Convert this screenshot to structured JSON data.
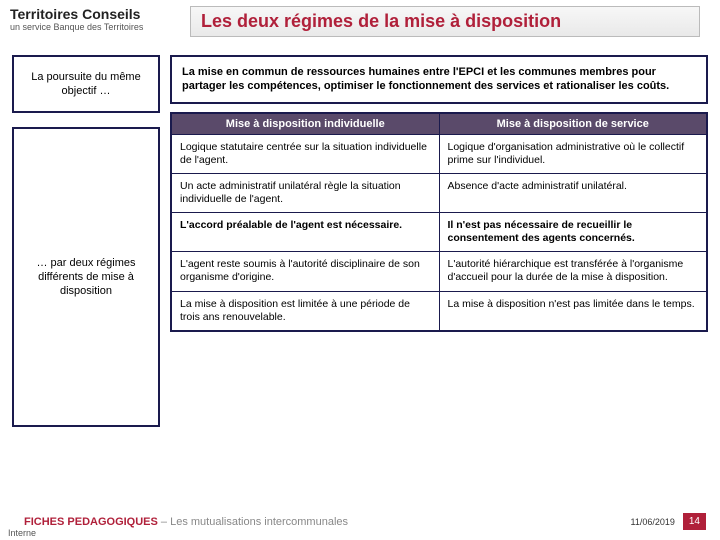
{
  "logo": {
    "title": "Territoires Conseils",
    "subtitle": "un service Banque des Territoires"
  },
  "title": "Les deux régimes de la mise à disposition",
  "left": {
    "box1": "La poursuite du même objectif …",
    "box2": "… par deux régimes différents de mise à disposition"
  },
  "intro": "La mise en commun de ressources humaines entre l'EPCI et les communes membres pour partager les compétences, optimiser le fonctionnement des services et rationaliser les coûts.",
  "table": {
    "head_left": "Mise à disposition individuelle",
    "head_right": "Mise à disposition de service",
    "rows": [
      {
        "l": "Logique statutaire centrée sur la situation individuelle de l'agent.",
        "r": "Logique d'organisation administrative où le collectif prime sur l'individuel."
      },
      {
        "l": "Un acte administratif unilatéral règle la situation individuelle de l'agent.",
        "r": "Absence d'acte administratif unilatéral."
      },
      {
        "l": "L'accord préalable de l'agent est nécessaire.",
        "r": "Il n'est pas nécessaire de recueillir le consentement des agents concernés."
      },
      {
        "l": "L'agent reste soumis à l'autorité disciplinaire de son organisme d'origine.",
        "r": "L'autorité hiérarchique est transférée à l'organisme d'accueil pour la durée de la mise à disposition."
      },
      {
        "l": "La mise à disposition est limitée à une période de trois ans renouvelable.",
        "r": "La mise à disposition n'est pas limitée dans le temps."
      }
    ]
  },
  "footer": {
    "prefix": "FICHES PEDAGOGIQUES",
    "sep": " – ",
    "suffix": "Les mutualisations intercommunales",
    "date": "11/06/2019",
    "page": "14",
    "interne": "Interne"
  }
}
